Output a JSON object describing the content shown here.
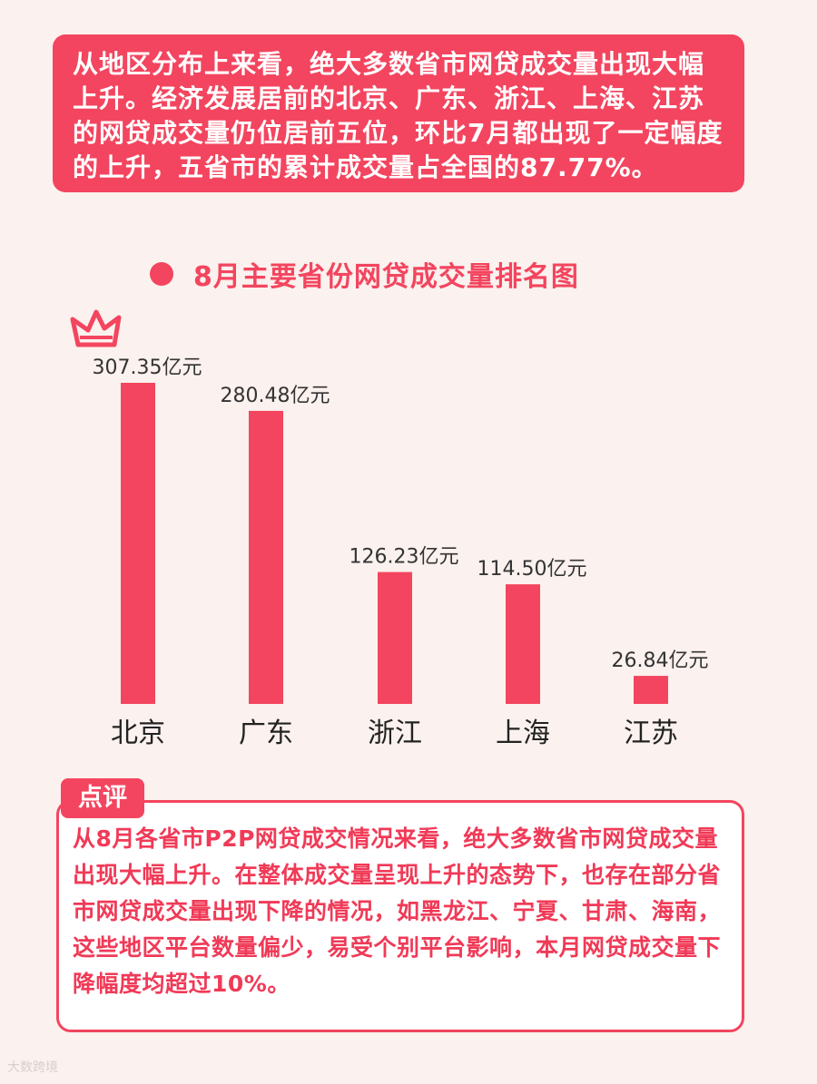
{
  "intro": {
    "text": "从地区分布上来看，绝大多数省市网贷成交量出现大幅上升。经济发展居前的北京、广东、浙江、上海、江苏的网贷成交量仍位居前五位，环比7月都出现了一定幅度的上升，五省市的累计成交量占全国的87.77%。"
  },
  "chart_title": "8月主要省份网贷成交量排名图",
  "chart_data": {
    "type": "bar",
    "title": "8月主要省份网贷成交量排名图",
    "categories": [
      "北京",
      "广东",
      "浙江",
      "上海",
      "江苏"
    ],
    "values": [
      307.35,
      280.48,
      126.23,
      114.5,
      26.84
    ],
    "data_labels": [
      "307.35亿元",
      "280.48亿元",
      "126.23亿元",
      "114.50亿元",
      "26.84亿元"
    ],
    "unit": "亿元",
    "xlabel": "",
    "ylabel": "",
    "ylim": [
      0,
      307.35
    ],
    "grid": false,
    "legend": "none",
    "bar_color": "#f3455f",
    "crown_on": "北京"
  },
  "review": {
    "label": "点评",
    "text": "从8月各省市P2P网贷成交情况来看，绝大多数省市网贷成交量出现大幅上升。在整体成交量呈现上升的态势下，也存在部分省市网贷成交量出现下降的情况，如黑龙江、宁夏、甘肃、海南，这些地区平台数量偏少，易受个别平台影响，本月网贷成交量下降幅度均超过10%。"
  },
  "watermark": "大数跨境",
  "colors": {
    "accent": "#f3455f",
    "background": "#fbf1ee"
  },
  "icons": {
    "crown": "crown-icon"
  }
}
